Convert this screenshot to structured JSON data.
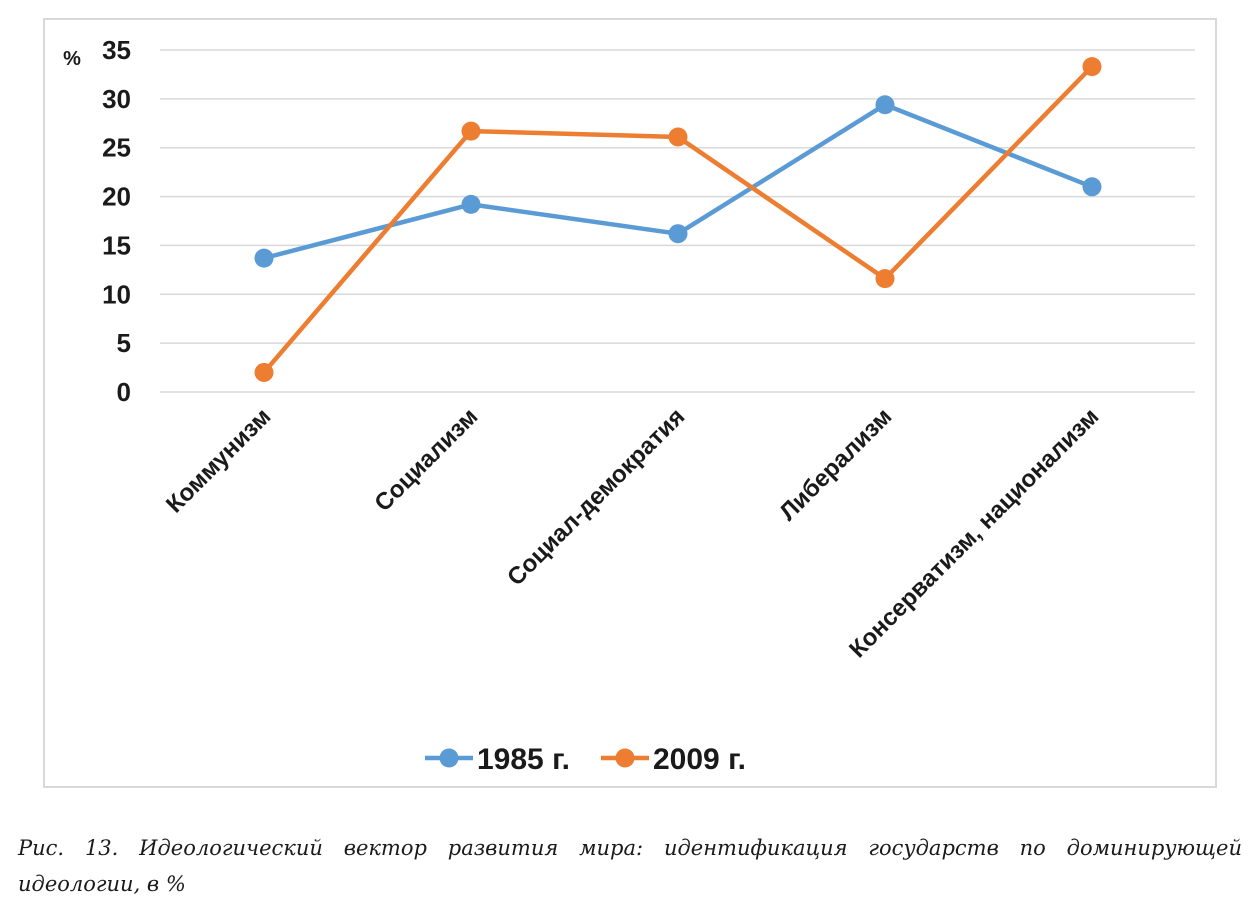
{
  "chart_data": {
    "type": "line",
    "y_unit": "%",
    "categories": [
      "Коммунизм",
      "Социализм",
      "Социал-демократия",
      "Либерализм",
      "Консерватизм, национализм"
    ],
    "series": [
      {
        "name": "1985 г.",
        "color": "#5b9bd5",
        "values": [
          13.7,
          19.2,
          16.2,
          29.4,
          21.0
        ]
      },
      {
        "name": "2009 г.",
        "color": "#ed7d31",
        "values": [
          2.0,
          26.7,
          26.1,
          11.6,
          33.3
        ]
      }
    ],
    "ylim": [
      0,
      35
    ],
    "yticks": [
      0,
      5,
      10,
      15,
      20,
      25,
      30,
      35
    ],
    "grid": true,
    "legend": "bottom-center"
  },
  "caption": "Рис. 13. Идеологический вектор развития мира: идентификация государств по доминирующей идеологии, в %"
}
